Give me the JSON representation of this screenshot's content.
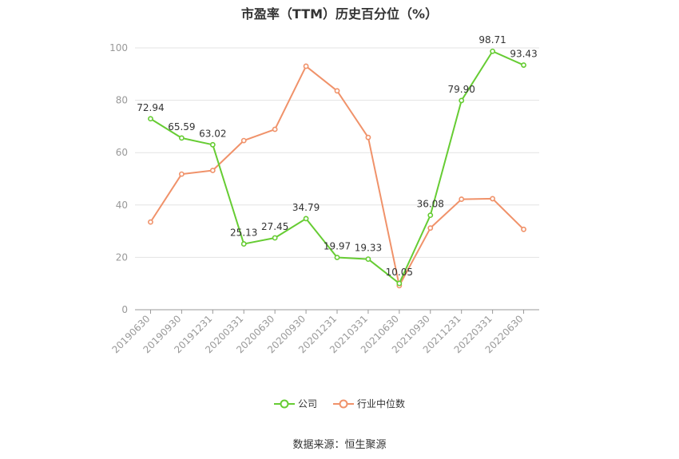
{
  "chart_data": {
    "type": "line",
    "title": "市盈率（TTM）历史百分位（%）",
    "categories": [
      "20190630",
      "20190930",
      "20191231",
      "20200331",
      "20200630",
      "20200930",
      "20201231",
      "20210331",
      "20210630",
      "20210930",
      "20211231",
      "20220331",
      "20220630"
    ],
    "series": [
      {
        "name": "公司",
        "color": "#66cc33",
        "values": [
          72.94,
          65.59,
          63.02,
          25.13,
          27.45,
          34.79,
          19.97,
          19.33,
          10.05,
          36.08,
          79.9,
          98.71,
          93.43
        ],
        "labels": [
          "72.94",
          "65.59",
          "63.02",
          "25.13",
          "27.45",
          "34.79",
          "19.97",
          "19.33",
          "10.05",
          "36.08",
          "79.90",
          "98.71",
          "93.43"
        ]
      },
      {
        "name": "行业中位数",
        "color": "#f0926a",
        "values": [
          33.5,
          51.8,
          53.2,
          64.6,
          68.9,
          93.0,
          83.6,
          65.8,
          9.2,
          31.2,
          42.2,
          42.4,
          30.7
        ]
      }
    ],
    "ylim": [
      0,
      100
    ],
    "yticks": [
      0,
      20,
      40,
      60,
      80,
      100
    ],
    "grid": true,
    "legend_position": "bottom-center"
  },
  "source": "数据来源：恒生聚源"
}
